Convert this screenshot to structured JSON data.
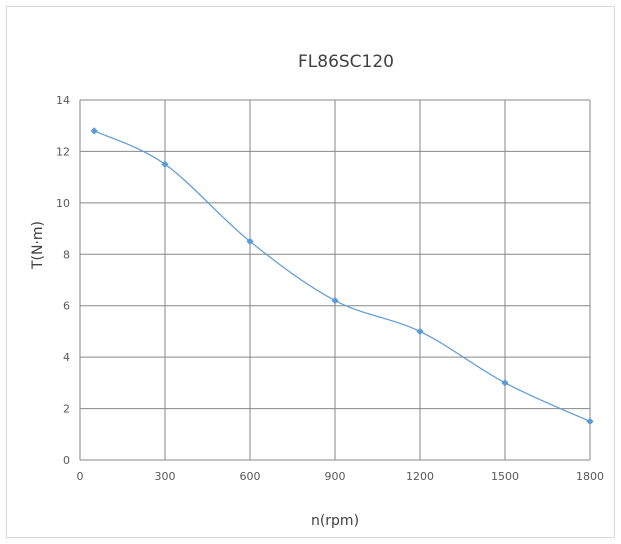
{
  "chart_data": {
    "type": "line",
    "title": "FL86SC120",
    "xlabel": "n(rpm)",
    "ylabel": "T(N·m)",
    "xlim": [
      0,
      1800
    ],
    "ylim": [
      0,
      14
    ],
    "x_ticks": [
      "0",
      "300",
      "600",
      "900",
      "1200",
      "1500",
      "1800"
    ],
    "y_ticks": [
      "0",
      "2",
      "4",
      "6",
      "8",
      "10",
      "12",
      "14"
    ],
    "grid": true,
    "smooth": true,
    "series": [
      {
        "color": "#5b9bd5",
        "marker": "diamond",
        "x": [
          50,
          300,
          600,
          900,
          1200,
          1500,
          1800
        ],
        "y": [
          12.8,
          11.5,
          8.5,
          6.2,
          5.0,
          3.0,
          1.5
        ]
      }
    ]
  }
}
